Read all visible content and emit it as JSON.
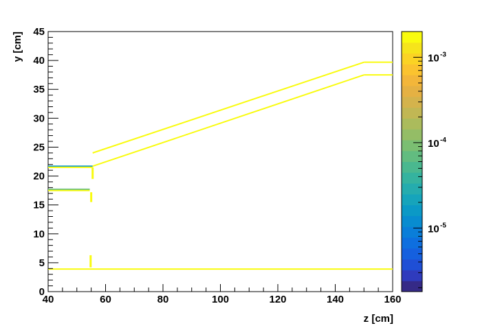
{
  "chart_data": {
    "type": "heatmap",
    "title": "",
    "xlabel": "z [cm]",
    "ylabel": "y [cm]",
    "xlim": [
      40,
      160
    ],
    "ylim": [
      0,
      45
    ],
    "x_ticks": [
      40,
      60,
      80,
      100,
      120,
      140,
      160
    ],
    "y_ticks": [
      0,
      5,
      10,
      15,
      20,
      25,
      30,
      35,
      40,
      45
    ],
    "grid": false,
    "legend": "none",
    "colorbar": {
      "scale": "log",
      "range": [
        1.8e-06,
        0.002
      ],
      "ticks": [
        {
          "value": 1e-05,
          "base": "10",
          "exp": "-5"
        },
        {
          "value": 0.0001,
          "base": "10",
          "exp": "-4"
        },
        {
          "value": 0.001,
          "base": "10",
          "exp": "-3"
        }
      ],
      "palette": [
        "#352a87",
        "#2f3bbd",
        "#1f4fd6",
        "#1560df",
        "#0e6fdf",
        "#0a7ed9",
        "#088cd0",
        "#0b99c6",
        "#16a4bb",
        "#25acae",
        "#35b39f",
        "#4ab88f",
        "#62bc80",
        "#7bbe72",
        "#94bd66",
        "#abbb5c",
        "#c1b754",
        "#d4b34c",
        "#e5b143",
        "#f3b63a",
        "#fbc32f",
        "#fbd324",
        "#f6e41b",
        "#f9fb0e"
      ]
    },
    "segments": [
      {
        "z": [
          40,
          55.5
        ],
        "y": [
          21.7,
          21.7
        ],
        "value": 1.5e-05
      },
      {
        "z": [
          40,
          55.5
        ],
        "y": [
          21.5,
          21.5
        ],
        "value": 0.0015
      },
      {
        "z": [
          40,
          54.5
        ],
        "y": [
          17.7,
          17.7
        ],
        "value": 6e-05
      },
      {
        "z": [
          40,
          54.5
        ],
        "y": [
          17.5,
          17.5
        ],
        "value": 0.0015
      },
      {
        "z": [
          55.5,
          55.5
        ],
        "y": [
          19.5,
          21.5
        ],
        "value": 0.0018
      },
      {
        "z": [
          55.0,
          55.0
        ],
        "y": [
          15.5,
          17.2
        ],
        "value": 0.0018
      },
      {
        "z": [
          54.8,
          54.8
        ],
        "y": [
          4.2,
          6.3
        ],
        "value": 0.0015
      },
      {
        "z": [
          55.5,
          150
        ],
        "y": [
          24.0,
          39.7
        ],
        "value": 0.0015
      },
      {
        "z": [
          150,
          160
        ],
        "y": [
          39.7,
          39.7
        ],
        "value": 0.0015
      },
      {
        "z": [
          55.5,
          150
        ],
        "y": [
          21.7,
          37.5
        ],
        "value": 0.0015
      },
      {
        "z": [
          150,
          160
        ],
        "y": [
          37.5,
          37.5
        ],
        "value": 0.0015
      },
      {
        "z": [
          40,
          160
        ],
        "y": [
          3.9,
          3.9
        ],
        "value": 0.0015
      }
    ]
  }
}
